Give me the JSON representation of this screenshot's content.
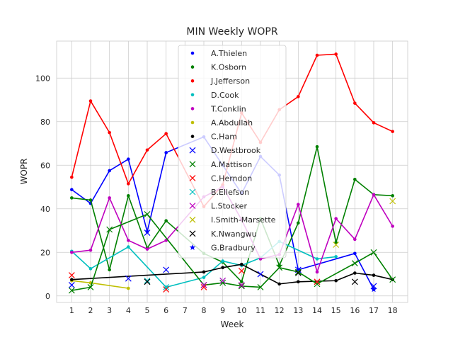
{
  "chart_data": {
    "type": "line",
    "title": "MIN Weekly WOPR",
    "xlabel": "Week",
    "ylabel": "WOPR",
    "x_ticks": [
      1,
      2,
      3,
      4,
      5,
      6,
      7,
      8,
      9,
      10,
      11,
      12,
      13,
      14,
      15,
      16,
      17,
      18
    ],
    "y_ticks": [
      0,
      20,
      40,
      60,
      80,
      100
    ],
    "xlim": [
      0.2,
      18.8
    ],
    "ylim": [
      -3,
      117
    ],
    "grid": true,
    "legend_position": "upper-center",
    "series": [
      {
        "name": "A.Thielen",
        "color": "#0000ff",
        "marker": "dot",
        "line": true,
        "points": [
          [
            1,
            48.8
          ],
          [
            2,
            42.5
          ],
          [
            3,
            57.5
          ],
          [
            4,
            62.8
          ],
          [
            5,
            29.5
          ],
          [
            6,
            65.8
          ],
          [
            8,
            73
          ],
          [
            9,
            60
          ],
          [
            10,
            47
          ],
          [
            11,
            64
          ],
          [
            12,
            55.5
          ],
          [
            13,
            12
          ],
          [
            16,
            19.5
          ],
          [
            17,
            3
          ]
        ]
      },
      {
        "name": "K.Osborn",
        "color": "#008000",
        "marker": "dot",
        "line": true,
        "points": [
          [
            1,
            45
          ],
          [
            2,
            44
          ],
          [
            3,
            12
          ],
          [
            4,
            46
          ],
          [
            5,
            22
          ],
          [
            6,
            34.5
          ],
          [
            8,
            19.5
          ],
          [
            9,
            15.5
          ],
          [
            10,
            6.5
          ],
          [
            11,
            35.5
          ],
          [
            12,
            14
          ],
          [
            13,
            33.5
          ],
          [
            14,
            68.5
          ],
          [
            15,
            24.5
          ],
          [
            16,
            53.5
          ],
          [
            17,
            46.5
          ],
          [
            18,
            46
          ]
        ]
      },
      {
        "name": "J.Jefferson",
        "color": "#ff0000",
        "marker": "dot",
        "line": true,
        "points": [
          [
            1,
            54.5
          ],
          [
            2,
            89.5
          ],
          [
            3,
            75
          ],
          [
            4,
            51.5
          ],
          [
            5,
            67
          ],
          [
            6,
            74.5
          ],
          [
            8,
            41
          ],
          [
            9,
            51
          ],
          [
            10,
            84
          ],
          [
            11,
            70.5
          ],
          [
            12,
            85.5
          ],
          [
            13,
            91.5
          ],
          [
            14,
            110.5
          ],
          [
            15,
            111
          ],
          [
            16,
            88.5
          ],
          [
            17,
            79.5
          ],
          [
            18,
            75.5
          ]
        ]
      },
      {
        "name": "D.Cook",
        "color": "#00bfbf",
        "marker": "dot",
        "line": true,
        "points": [
          [
            1,
            20.5
          ],
          [
            2,
            12.5
          ],
          [
            4,
            22.5
          ],
          [
            6,
            4
          ],
          [
            8,
            8.5
          ],
          [
            9,
            16
          ],
          [
            10,
            14
          ],
          [
            11,
            17.5
          ],
          [
            12,
            25
          ],
          [
            14,
            17
          ],
          [
            15,
            18
          ]
        ]
      },
      {
        "name": "T.Conklin",
        "color": "#bf00bf",
        "marker": "dot",
        "line": true,
        "points": [
          [
            1,
            20
          ],
          [
            2,
            21
          ],
          [
            3,
            45
          ],
          [
            4,
            25.5
          ],
          [
            5,
            21.5
          ],
          [
            6,
            25.5
          ],
          [
            8,
            45.5
          ],
          [
            9,
            50
          ],
          [
            10,
            35
          ],
          [
            11,
            17
          ],
          [
            12,
            19
          ],
          [
            13,
            42
          ],
          [
            14,
            11
          ],
          [
            15,
            35.5
          ],
          [
            16,
            26
          ],
          [
            17,
            46.5
          ],
          [
            18,
            32
          ]
        ]
      },
      {
        "name": "A.Abdullah",
        "color": "#bfbf00",
        "marker": "dot",
        "line": true,
        "points": [
          [
            1,
            7
          ],
          [
            2,
            6
          ],
          [
            4,
            3.5
          ]
        ]
      },
      {
        "name": "C.Ham",
        "color": "#000000",
        "marker": "dot",
        "line": true,
        "points": [
          [
            1,
            7.5
          ],
          [
            8,
            11
          ],
          [
            9,
            13
          ],
          [
            10,
            14.5
          ],
          [
            12,
            5.5
          ],
          [
            13,
            6.5
          ],
          [
            15,
            7
          ],
          [
            16,
            10.5
          ],
          [
            17,
            9.5
          ],
          [
            18,
            7.5
          ]
        ]
      },
      {
        "name": "D.Westbrook",
        "color": "#0000ff",
        "marker": "x",
        "line": false,
        "points": [
          [
            1,
            5
          ],
          [
            4,
            8
          ],
          [
            5,
            29
          ],
          [
            6,
            12
          ],
          [
            11,
            10
          ],
          [
            13,
            12
          ],
          [
            17,
            4.5
          ]
        ]
      },
      {
        "name": "A.Mattison",
        "color": "#008000",
        "marker": "x",
        "line": true,
        "points": [
          [
            1,
            2.5
          ],
          [
            2,
            4
          ],
          [
            3,
            30.5
          ],
          [
            5,
            37.5
          ],
          [
            8,
            5
          ],
          [
            9,
            6
          ],
          [
            10,
            4.5
          ],
          [
            11,
            4
          ],
          [
            12,
            13
          ],
          [
            13,
            11
          ],
          [
            14,
            5.5
          ],
          [
            16,
            15
          ],
          [
            17,
            20
          ],
          [
            18,
            7.5
          ]
        ]
      },
      {
        "name": "C.Herndon",
        "color": "#ff0000",
        "marker": "x",
        "line": false,
        "points": [
          [
            1,
            9.5
          ],
          [
            6,
            3
          ],
          [
            8,
            4
          ],
          [
            10,
            11.5
          ],
          [
            14,
            6.5
          ]
        ]
      },
      {
        "name": "B.Ellefson",
        "color": "#00bfbf",
        "marker": "x",
        "line": false,
        "points": [
          [
            5,
            7
          ],
          [
            6,
            4
          ],
          [
            9,
            7
          ]
        ]
      },
      {
        "name": "L.Stocker",
        "color": "#bf00bf",
        "marker": "x",
        "line": false,
        "points": [
          [
            8,
            5
          ],
          [
            9,
            7
          ],
          [
            10,
            5
          ]
        ]
      },
      {
        "name": "I.Smith-Marsette",
        "color": "#bfbf00",
        "marker": "x",
        "line": false,
        "points": [
          [
            15,
            23.5
          ],
          [
            18,
            43.5
          ]
        ]
      },
      {
        "name": "K.Nwangwu",
        "color": "#000000",
        "marker": "x",
        "line": false,
        "points": [
          [
            5,
            6.5
          ],
          [
            13,
            10.5
          ],
          [
            16,
            6.5
          ]
        ]
      },
      {
        "name": "G.Bradbury",
        "color": "#0000ff",
        "marker": "star",
        "line": false,
        "points": [
          [
            17,
            3
          ]
        ]
      }
    ]
  }
}
